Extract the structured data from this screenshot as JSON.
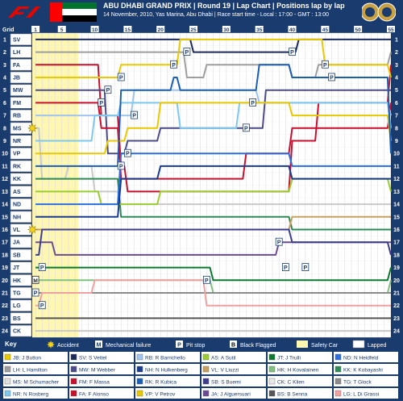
{
  "header": {
    "title": "ABU DHABI GRAND PRIX  |  Round 19  |  Lap Chart  |  Positions lap by lap",
    "subtitle": "14 November, 2010, Yas Marina, Abu Dhabi  |  Race start time - Local : 17:00 - GMT : 13:00",
    "grid_label": "Grid"
  },
  "chart_data": {
    "type": "line",
    "title": "Lap Chart",
    "x_ticks": [
      1,
      5,
      10,
      15,
      20,
      25,
      30,
      35,
      40,
      45,
      50,
      55
    ],
    "xlim": [
      1,
      55
    ],
    "ylim": [
      1,
      24
    ],
    "positions": [
      1,
      2,
      3,
      4,
      5,
      6,
      7,
      8,
      9,
      10,
      11,
      12,
      13,
      14,
      15,
      16,
      17,
      18,
      19,
      20,
      21,
      22,
      23,
      24
    ],
    "grid": [
      "SV",
      "LH",
      "FA",
      "JB",
      "MW",
      "FM",
      "RB",
      "MS",
      "NR",
      "VP",
      "RK",
      "KK",
      "AS",
      "ND",
      "NH",
      "VL",
      "JA",
      "SB",
      "JT",
      "HK",
      "TG",
      "LG",
      "BS",
      "CK"
    ],
    "accident_markers": [
      {
        "lap": 1,
        "position": 8
      },
      {
        "lap": 1,
        "position": 16
      }
    ],
    "pitstop_markers": [
      {
        "lap": 24,
        "position": 2
      },
      {
        "lap": 22,
        "position": 3
      },
      {
        "lap": 14,
        "position": 4
      },
      {
        "lap": 12,
        "position": 5
      },
      {
        "lap": 11,
        "position": 6
      },
      {
        "lap": 16,
        "position": 7
      },
      {
        "lap": 34,
        "position": 6
      },
      {
        "lap": 33,
        "position": 8
      },
      {
        "lap": 40,
        "position": 2
      },
      {
        "lap": 45,
        "position": 3
      },
      {
        "lap": 46,
        "position": 4
      },
      {
        "lap": 15,
        "position": 10
      },
      {
        "lap": 14,
        "position": 11
      },
      {
        "lap": 27,
        "position": 20
      },
      {
        "lap": 38,
        "position": 17
      },
      {
        "lap": 39,
        "position": 19
      },
      {
        "lap": 42,
        "position": 19
      },
      {
        "lap": 2,
        "position": 19
      },
      {
        "lap": 1,
        "position": 21
      },
      {
        "lap": 2,
        "position": 22
      }
    ],
    "mechanical_markers": [
      {
        "lap": 1,
        "position": 20
      }
    ],
    "series": [
      {
        "name": "SV",
        "color": "#1b2a5a",
        "points": [
          [
            1,
            1
          ],
          [
            24,
            1
          ],
          [
            25,
            2
          ],
          [
            40,
            2
          ],
          [
            41,
            1
          ],
          [
            55,
            1
          ]
        ]
      },
      {
        "name": "LH",
        "color": "#9e9e9e",
        "points": [
          [
            1,
            2
          ],
          [
            23,
            2
          ],
          [
            24,
            4
          ],
          [
            27,
            3
          ],
          [
            39,
            3
          ],
          [
            40,
            4
          ],
          [
            44,
            3
          ],
          [
            55,
            2
          ]
        ]
      },
      {
        "name": "FA",
        "color": "#c8102e",
        "points": [
          [
            1,
            3
          ],
          [
            10,
            3
          ],
          [
            11,
            7
          ],
          [
            14,
            11
          ],
          [
            15,
            13
          ],
          [
            20,
            13
          ],
          [
            30,
            13
          ],
          [
            40,
            9
          ],
          [
            44,
            6
          ],
          [
            55,
            3
          ]
        ]
      },
      {
        "name": "JB",
        "color": "#e8c800",
        "points": [
          [
            1,
            4
          ],
          [
            13,
            4
          ],
          [
            14,
            3
          ],
          [
            22,
            3
          ],
          [
            23,
            1
          ],
          [
            40,
            1
          ],
          [
            45,
            3
          ],
          [
            55,
            4
          ]
        ]
      },
      {
        "name": "MW",
        "color": "#4b4b8a",
        "points": [
          [
            1,
            5
          ],
          [
            11,
            5
          ],
          [
            12,
            10
          ],
          [
            15,
            9
          ],
          [
            20,
            8
          ],
          [
            33,
            8
          ],
          [
            36,
            5
          ],
          [
            55,
            5
          ]
        ]
      },
      {
        "name": "FM",
        "color": "#c8102e",
        "points": [
          [
            1,
            6
          ],
          [
            10,
            6
          ],
          [
            11,
            8
          ],
          [
            14,
            12
          ],
          [
            15,
            12
          ],
          [
            33,
            10
          ],
          [
            40,
            8
          ],
          [
            55,
            6
          ]
        ]
      },
      {
        "name": "RB",
        "color": "#a0c4f0",
        "points": [
          [
            1,
            7
          ],
          [
            15,
            7
          ],
          [
            16,
            5
          ],
          [
            34,
            5
          ],
          [
            35,
            6
          ],
          [
            45,
            6
          ],
          [
            55,
            7
          ]
        ]
      },
      {
        "name": "MS",
        "color": "#e0e0e0",
        "points": [
          [
            1,
            8
          ],
          [
            2,
            12
          ],
          [
            6,
            11
          ],
          [
            10,
            13
          ],
          [
            14,
            14
          ],
          [
            20,
            14
          ],
          [
            30,
            14
          ],
          [
            55,
            14
          ]
        ]
      },
      {
        "name": "NR",
        "color": "#7ec8f0",
        "points": [
          [
            1,
            9
          ],
          [
            10,
            7
          ],
          [
            14,
            6
          ],
          [
            22,
            6
          ],
          [
            23,
            8
          ],
          [
            32,
            6
          ],
          [
            55,
            8
          ]
        ]
      },
      {
        "name": "VP",
        "color": "#e8c800",
        "points": [
          [
            1,
            10
          ],
          [
            5,
            10
          ],
          [
            12,
            9
          ],
          [
            15,
            8
          ],
          [
            20,
            6
          ],
          [
            30,
            6
          ],
          [
            40,
            7
          ],
          [
            55,
            9
          ]
        ]
      },
      {
        "name": "RK",
        "color": "#1a5fb4",
        "points": [
          [
            1,
            11
          ],
          [
            12,
            11
          ],
          [
            14,
            5
          ],
          [
            22,
            4
          ],
          [
            23,
            5
          ],
          [
            35,
            3
          ],
          [
            40,
            4
          ],
          [
            55,
            10
          ]
        ]
      },
      {
        "name": "KK",
        "color": "#2e8b57",
        "points": [
          [
            1,
            12
          ],
          [
            10,
            12
          ],
          [
            14,
            15
          ],
          [
            20,
            15
          ],
          [
            40,
            16
          ],
          [
            55,
            16
          ]
        ]
      },
      {
        "name": "AS",
        "color": "#9acd32",
        "points": [
          [
            1,
            13
          ],
          [
            10,
            13
          ],
          [
            11,
            14
          ],
          [
            20,
            13
          ],
          [
            40,
            12
          ],
          [
            55,
            13
          ]
        ]
      },
      {
        "name": "ND",
        "color": "#2a6ee0",
        "points": [
          [
            1,
            14
          ],
          [
            10,
            14
          ],
          [
            14,
            10
          ],
          [
            20,
            10
          ],
          [
            40,
            11
          ],
          [
            55,
            11
          ]
        ]
      },
      {
        "name": "NH",
        "color": "#1a3b8e",
        "points": [
          [
            1,
            15
          ],
          [
            10,
            15
          ],
          [
            14,
            12
          ],
          [
            20,
            11
          ],
          [
            40,
            12
          ],
          [
            55,
            12
          ]
        ]
      },
      {
        "name": "VL",
        "color": "#c8a060",
        "points": [
          [
            1,
            16
          ],
          [
            10,
            16
          ],
          [
            14,
            16
          ],
          [
            20,
            16
          ],
          [
            40,
            15
          ],
          [
            55,
            15
          ]
        ]
      },
      {
        "name": "JA",
        "color": "#6a4c93",
        "points": [
          [
            1,
            17
          ],
          [
            2,
            17
          ],
          [
            4,
            18
          ],
          [
            10,
            18
          ],
          [
            28,
            18
          ],
          [
            38,
            17
          ],
          [
            55,
            17
          ]
        ]
      },
      {
        "name": "SB",
        "color": "#3d3d8f",
        "points": [
          [
            1,
            18
          ],
          [
            2,
            16
          ],
          [
            10,
            16
          ],
          [
            28,
            16
          ],
          [
            40,
            17
          ],
          [
            55,
            18
          ]
        ]
      },
      {
        "name": "JT",
        "color": "#0b7a2e",
        "points": [
          [
            1,
            19
          ],
          [
            2,
            19
          ],
          [
            10,
            19
          ],
          [
            27,
            19
          ],
          [
            28,
            20
          ],
          [
            55,
            19
          ]
        ]
      },
      {
        "name": "HK",
        "color": "#80c080",
        "points": [
          [
            1,
            20
          ],
          [
            10,
            20
          ],
          [
            27,
            20
          ],
          [
            28,
            21
          ],
          [
            55,
            20
          ]
        ]
      },
      {
        "name": "TG",
        "color": "#8a8a8a",
        "points": [
          [
            1,
            21
          ],
          [
            2,
            21
          ],
          [
            10,
            21
          ],
          [
            28,
            21
          ],
          [
            55,
            21
          ]
        ]
      },
      {
        "name": "LG",
        "color": "#f0a0a0",
        "points": [
          [
            1,
            22
          ],
          [
            2,
            21
          ],
          [
            10,
            20
          ],
          [
            27,
            22
          ],
          [
            55,
            22
          ]
        ]
      },
      {
        "name": "BS",
        "color": "#555555",
        "points": [
          [
            1,
            23
          ],
          [
            10,
            23
          ],
          [
            55,
            23
          ]
        ]
      },
      {
        "name": "CK",
        "color": "#e8e8e8",
        "points": [
          [
            1,
            24
          ],
          [
            10,
            24
          ],
          [
            55,
            24
          ]
        ]
      }
    ]
  },
  "key": {
    "title": "Key",
    "items": [
      "Accident",
      "Mechanical failure",
      "Pit stop",
      "Black Flagged",
      "Safety Car",
      "Lapped"
    ],
    "drivers": [
      {
        "code": "JB",
        "name": "J Button",
        "color": "#e8c800"
      },
      {
        "code": "SV",
        "name": "S Vettel",
        "color": "#1b2a5a"
      },
      {
        "code": "RB",
        "name": "R Barrichello",
        "color": "#a0c4f0"
      },
      {
        "code": "AS",
        "name": "A Sutil",
        "color": "#9acd32"
      },
      {
        "code": "JT",
        "name": "J Trulli",
        "color": "#0b7a2e"
      },
      {
        "code": "ND",
        "name": "N Heidfeld",
        "color": "#2a6ee0"
      },
      {
        "code": "LH",
        "name": "L Hamilton",
        "color": "#9e9e9e"
      },
      {
        "code": "MW",
        "name": "M Webber",
        "color": "#4b4b8a"
      },
      {
        "code": "NH",
        "name": "N Hulkenberg",
        "color": "#1a3b8e"
      },
      {
        "code": "VL",
        "name": "V Liuzzi",
        "color": "#c8a060"
      },
      {
        "code": "HK",
        "name": "H Kovalainen",
        "color": "#80c080"
      },
      {
        "code": "KK",
        "name": "K Kobayashi",
        "color": "#2e8b57"
      },
      {
        "code": "MS",
        "name": "M Schumacher",
        "color": "#e0e0e0"
      },
      {
        "code": "FM",
        "name": "F Massa",
        "color": "#c8102e"
      },
      {
        "code": "RK",
        "name": "R Kubica",
        "color": "#1a5fb4"
      },
      {
        "code": "SB",
        "name": "S Buemi",
        "color": "#3d3d8f"
      },
      {
        "code": "CK",
        "name": "C Klien",
        "color": "#e8e8e8"
      },
      {
        "code": "TG",
        "name": "T Glock",
        "color": "#8a8a8a"
      },
      {
        "code": "NR",
        "name": "N Rosberg",
        "color": "#7ec8f0"
      },
      {
        "code": "FA",
        "name": "F Alonso",
        "color": "#c8102e"
      },
      {
        "code": "VP",
        "name": "V Petrov",
        "color": "#e8c800"
      },
      {
        "code": "JA",
        "name": "J Alguersuari",
        "color": "#6a4c93"
      },
      {
        "code": "BS",
        "name": "B Senna",
        "color": "#555555"
      },
      {
        "code": "LG",
        "name": "L Di Grassi",
        "color": "#f0a0a0"
      }
    ]
  }
}
